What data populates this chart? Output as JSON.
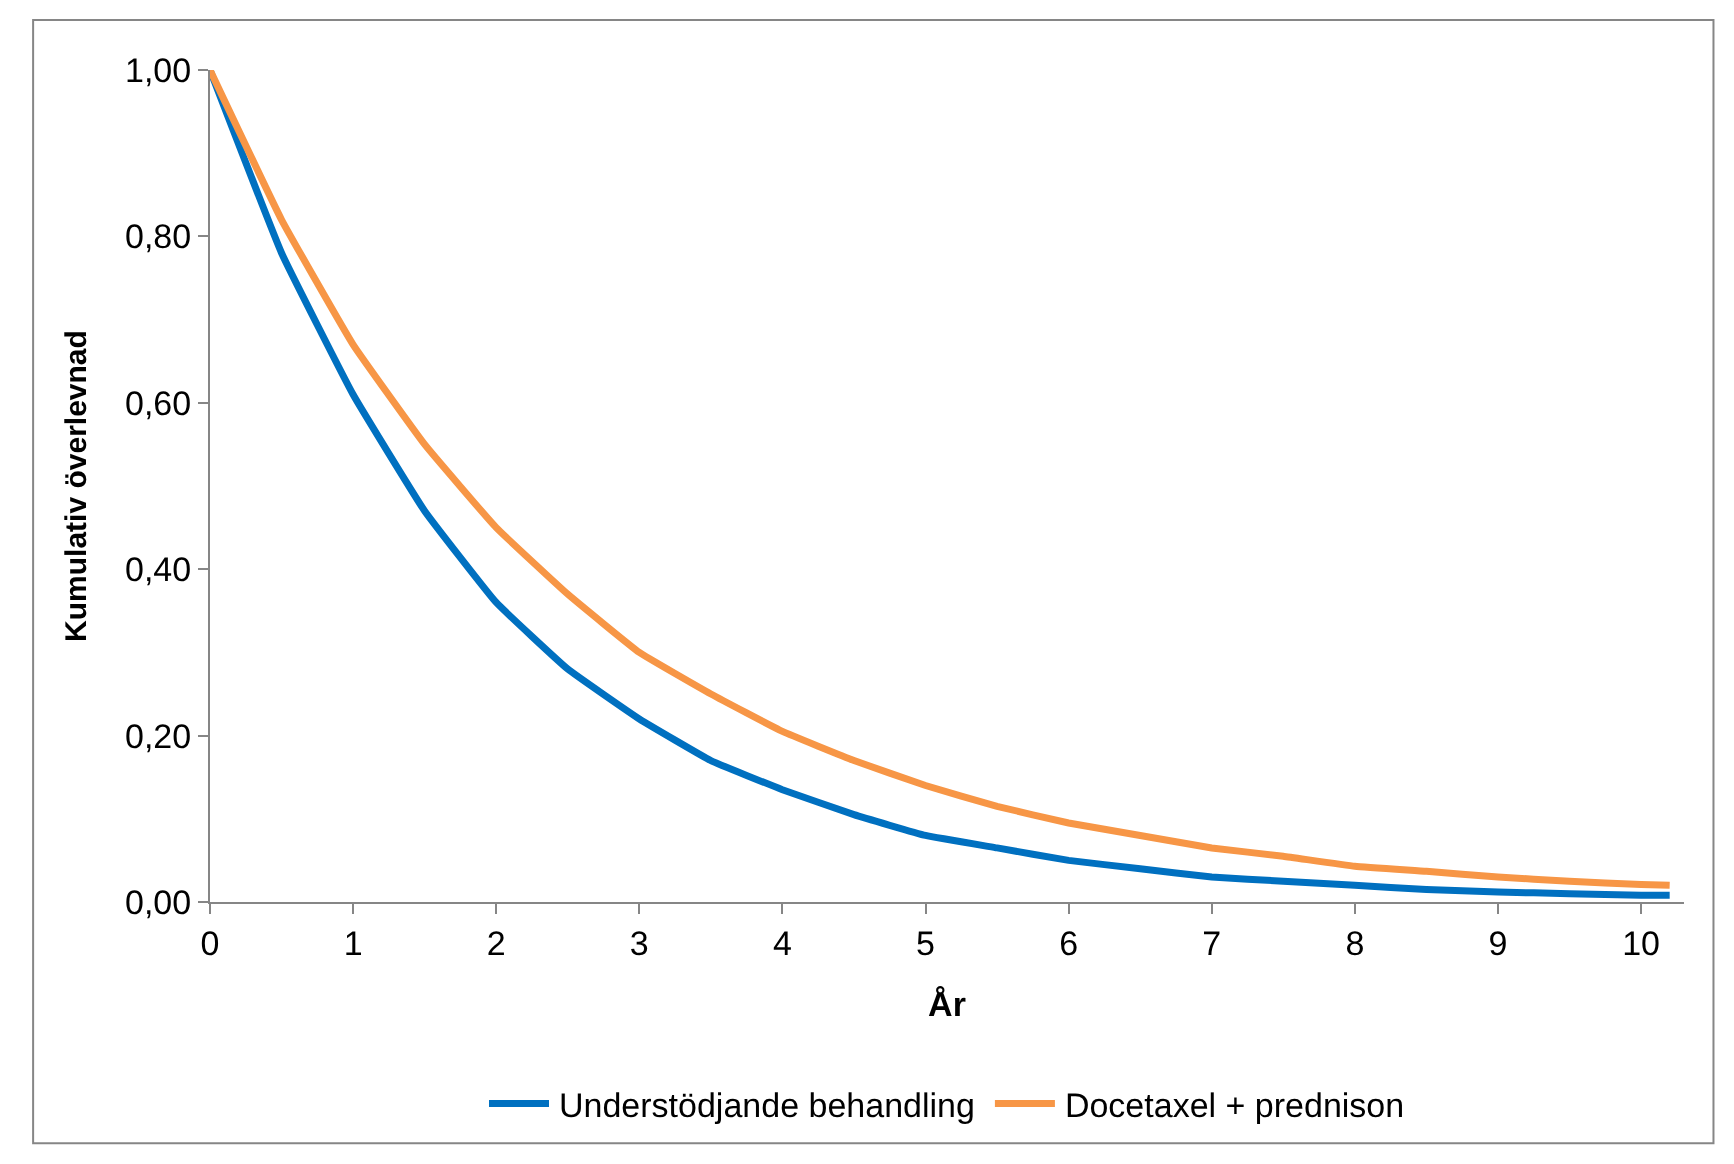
{
  "chart_data": {
    "type": "line",
    "xlabel": "År",
    "ylabel": "Kumulativ överlevnad",
    "xlim": [
      0,
      10.3
    ],
    "ylim": [
      0,
      1
    ],
    "xticks": [
      0,
      1,
      2,
      3,
      4,
      5,
      6,
      7,
      8,
      9,
      10
    ],
    "yticks": [
      {
        "value": 0,
        "label": "0,00"
      },
      {
        "value": 0.2,
        "label": "0,20"
      },
      {
        "value": 0.4,
        "label": "0,40"
      },
      {
        "value": 0.6,
        "label": "0,60"
      },
      {
        "value": 0.8,
        "label": "0,80"
      },
      {
        "value": 1,
        "label": "1,00"
      }
    ],
    "x": [
      0,
      0.5,
      1,
      1.5,
      2,
      2.5,
      3,
      3.5,
      4,
      4.5,
      5,
      5.5,
      6,
      6.5,
      7,
      7.5,
      8,
      8.5,
      9,
      9.5,
      10,
      10.2
    ],
    "series": [
      {
        "name": "Understödjande behandling",
        "color": "#0070c0",
        "values": [
          1,
          0.78,
          0.61,
          0.47,
          0.36,
          0.28,
          0.22,
          0.17,
          0.135,
          0.105,
          0.08,
          0.065,
          0.05,
          0.04,
          0.03,
          0.025,
          0.02,
          0.015,
          0.012,
          0.01,
          0.008,
          0.008
        ]
      },
      {
        "name": "Docetaxel + prednison",
        "color": "#f79646",
        "values": [
          1,
          0.82,
          0.67,
          0.55,
          0.45,
          0.37,
          0.3,
          0.25,
          0.205,
          0.17,
          0.14,
          0.115,
          0.095,
          0.08,
          0.065,
          0.055,
          0.043,
          0.037,
          0.03,
          0.025,
          0.021,
          0.02
        ]
      }
    ],
    "legend": "bottom",
    "marker": "none",
    "line_style": "solid"
  }
}
